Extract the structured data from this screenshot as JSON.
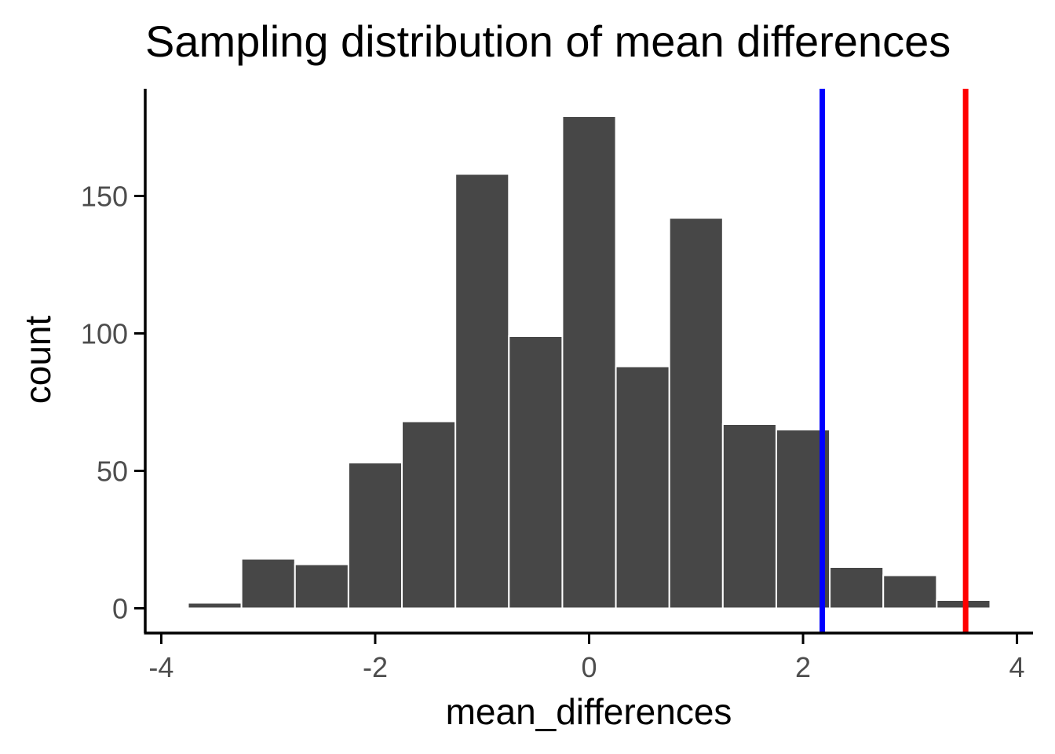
{
  "chart_data": {
    "type": "bar",
    "title": "Sampling distribution of mean differences",
    "xlabel": "mean_differences",
    "ylabel": "count",
    "xlim": [
      -4.15,
      4.15
    ],
    "ylim": [
      -9,
      189
    ],
    "x_ticks": [
      -4,
      -2,
      0,
      2,
      4
    ],
    "y_ticks": [
      0,
      50,
      100,
      150
    ],
    "bin_width": 0.5,
    "bins": [
      {
        "x": -3.5,
        "count": 2
      },
      {
        "x": -3.0,
        "count": 18
      },
      {
        "x": -2.5,
        "count": 16
      },
      {
        "x": -2.0,
        "count": 53
      },
      {
        "x": -1.5,
        "count": 68
      },
      {
        "x": -1.0,
        "count": 158
      },
      {
        "x": -0.5,
        "count": 99
      },
      {
        "x": 0.0,
        "count": 179
      },
      {
        "x": 0.5,
        "count": 88
      },
      {
        "x": 1.0,
        "count": 142
      },
      {
        "x": 1.5,
        "count": 67
      },
      {
        "x": 2.0,
        "count": 65
      },
      {
        "x": 2.5,
        "count": 15
      },
      {
        "x": 3.0,
        "count": 12
      },
      {
        "x": 3.5,
        "count": 3
      }
    ],
    "reference_lines": [
      {
        "x": 2.18,
        "color": "#0000ff"
      },
      {
        "x": 3.52,
        "color": "#ff0000"
      }
    ],
    "colors": {
      "bar_fill": "#474747",
      "bar_outline": "#ffffff",
      "axis": "#000000",
      "tick_label": "#4d4d4d"
    },
    "grid": false,
    "legend": "none"
  }
}
